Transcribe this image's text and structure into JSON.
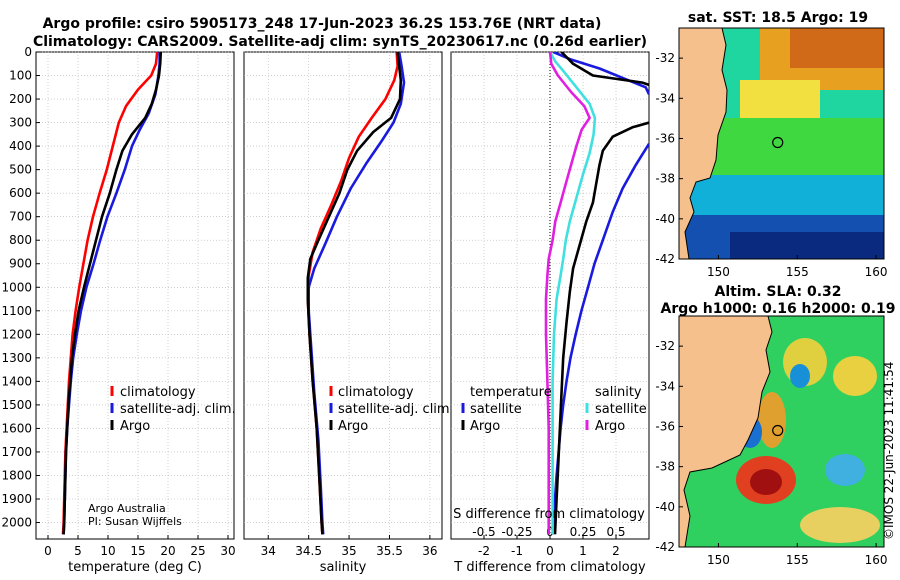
{
  "titles": {
    "line1": "Argo profile: csiro 5905173_248 17-Jun-2023 36.2S 153.76E (NRT data)",
    "line2": "Climatology: CARS2009. Satellite-adj clim: synTS_20230617.nc (0.26d earlier)"
  },
  "colors": {
    "climatology": "#ff0000",
    "satellite": "#1a1adf",
    "argo": "#000000",
    "sal_satellite": "#40e0e0",
    "sal_argo": "#e020e0",
    "land": "#f5c08c",
    "grid": "#b4b4b4"
  },
  "depth_ticks": [
    0,
    100,
    200,
    300,
    400,
    500,
    600,
    700,
    800,
    900,
    1000,
    1100,
    1200,
    1300,
    1400,
    1500,
    1600,
    1700,
    1800,
    1900,
    2000
  ],
  "chart_data": [
    {
      "type": "line",
      "name": "temperature",
      "xlabel": "temperature (deg C)",
      "ylabel": "depth",
      "xlim": [
        -2,
        31
      ],
      "ylim": [
        2070,
        0
      ],
      "xticks": [
        0,
        5,
        10,
        15,
        20,
        25,
        30
      ],
      "legend": {
        "position": "bottom-center",
        "entries": [
          "climatology",
          "satellite-adj. clim.",
          "Argo"
        ]
      },
      "annotation": [
        "Argo Australia",
        "PI: Susan Wijffels"
      ],
      "series": [
        {
          "name": "climatology",
          "color": "#ff0000",
          "points": [
            [
              18.2,
              0
            ],
            [
              18.0,
              50
            ],
            [
              17.2,
              100
            ],
            [
              15.0,
              160
            ],
            [
              13.0,
              230
            ],
            [
              11.8,
              300
            ],
            [
              10.8,
              400
            ],
            [
              9.8,
              500
            ],
            [
              8.6,
              600
            ],
            [
              7.5,
              700
            ],
            [
              6.6,
              800
            ],
            [
              5.9,
              900
            ],
            [
              5.2,
              1000
            ],
            [
              4.6,
              1100
            ],
            [
              4.1,
              1200
            ],
            [
              3.8,
              1300
            ],
            [
              3.5,
              1400
            ],
            [
              3.3,
              1500
            ],
            [
              3.1,
              1600
            ],
            [
              2.9,
              1700
            ],
            [
              2.8,
              1800
            ],
            [
              2.7,
              1900
            ],
            [
              2.6,
              2000
            ],
            [
              2.5,
              2050
            ]
          ]
        },
        {
          "name": "satellite-adj. clim.",
          "color": "#1a1adf",
          "points": [
            [
              18.6,
              0
            ],
            [
              18.6,
              50
            ],
            [
              18.4,
              100
            ],
            [
              17.9,
              180
            ],
            [
              16.8,
              260
            ],
            [
              15.3,
              330
            ],
            [
              14.0,
              400
            ],
            [
              12.8,
              500
            ],
            [
              11.4,
              600
            ],
            [
              9.9,
              700
            ],
            [
              8.7,
              800
            ],
            [
              7.6,
              900
            ],
            [
              6.4,
              1000
            ],
            [
              5.5,
              1100
            ],
            [
              4.8,
              1200
            ],
            [
              4.2,
              1300
            ],
            [
              3.8,
              1400
            ],
            [
              3.5,
              1500
            ],
            [
              3.2,
              1600
            ],
            [
              3.0,
              1700
            ],
            [
              2.9,
              1800
            ],
            [
              2.8,
              1900
            ],
            [
              2.7,
              2000
            ],
            [
              2.6,
              2050
            ]
          ]
        },
        {
          "name": "Argo",
          "color": "#000000",
          "points": [
            [
              18.8,
              0
            ],
            [
              18.7,
              50
            ],
            [
              18.5,
              100
            ],
            [
              18.0,
              160
            ],
            [
              17.3,
              220
            ],
            [
              16.2,
              280
            ],
            [
              14.0,
              350
            ],
            [
              12.4,
              420
            ],
            [
              11.4,
              500
            ],
            [
              10.3,
              600
            ],
            [
              9.0,
              700
            ],
            [
              8.0,
              800
            ],
            [
              7.0,
              900
            ],
            [
              6.0,
              1000
            ],
            [
              5.1,
              1100
            ],
            [
              4.5,
              1200
            ],
            [
              4.0,
              1300
            ],
            [
              3.7,
              1400
            ],
            [
              3.4,
              1500
            ],
            [
              3.2,
              1600
            ],
            [
              3.0,
              1700
            ],
            [
              2.9,
              1800
            ],
            [
              2.8,
              1900
            ],
            [
              2.7,
              2000
            ],
            [
              2.6,
              2050
            ]
          ]
        }
      ]
    },
    {
      "type": "line",
      "name": "salinity",
      "xlabel": "salinity",
      "ylabel": "depth",
      "xlim": [
        33.7,
        36.15
      ],
      "ylim": [
        2070,
        0
      ],
      "xticks": [
        34,
        34.5,
        35,
        35.5,
        36
      ],
      "legend": {
        "position": "bottom-center",
        "entries": [
          "climatology",
          "satellite-adj. clim.",
          "Argo"
        ]
      },
      "series": [
        {
          "name": "climatology",
          "color": "#ff0000",
          "points": [
            [
              35.59,
              0
            ],
            [
              35.6,
              60
            ],
            [
              35.56,
              120
            ],
            [
              35.45,
              200
            ],
            [
              35.28,
              280
            ],
            [
              35.12,
              360
            ],
            [
              35.0,
              450
            ],
            [
              34.9,
              550
            ],
            [
              34.78,
              650
            ],
            [
              34.65,
              750
            ],
            [
              34.55,
              850
            ],
            [
              34.5,
              950
            ],
            [
              34.49,
              1050
            ],
            [
              34.51,
              1200
            ],
            [
              34.55,
              1400
            ],
            [
              34.6,
              1600
            ],
            [
              34.63,
              1800
            ],
            [
              34.66,
              2000
            ],
            [
              34.67,
              2050
            ]
          ]
        },
        {
          "name": "satellite-adj. clim.",
          "color": "#1a1adf",
          "points": [
            [
              35.62,
              0
            ],
            [
              35.65,
              60
            ],
            [
              35.68,
              130
            ],
            [
              35.64,
              220
            ],
            [
              35.55,
              300
            ],
            [
              35.4,
              380
            ],
            [
              35.22,
              470
            ],
            [
              35.02,
              580
            ],
            [
              34.85,
              700
            ],
            [
              34.7,
              820
            ],
            [
              34.57,
              920
            ],
            [
              34.5,
              1000
            ],
            [
              34.5,
              1100
            ],
            [
              34.53,
              1250
            ],
            [
              34.57,
              1450
            ],
            [
              34.62,
              1650
            ],
            [
              34.65,
              1850
            ],
            [
              34.67,
              2000
            ],
            [
              34.68,
              2050
            ]
          ]
        },
        {
          "name": "Argo",
          "color": "#000000",
          "points": [
            [
              35.6,
              0
            ],
            [
              35.62,
              60
            ],
            [
              35.64,
              120
            ],
            [
              35.63,
              200
            ],
            [
              35.52,
              280
            ],
            [
              35.3,
              340
            ],
            [
              35.1,
              420
            ],
            [
              34.98,
              500
            ],
            [
              34.88,
              600
            ],
            [
              34.75,
              700
            ],
            [
              34.62,
              800
            ],
            [
              34.52,
              880
            ],
            [
              34.49,
              960
            ],
            [
              34.49,
              1050
            ],
            [
              34.51,
              1200
            ],
            [
              34.55,
              1400
            ],
            [
              34.6,
              1600
            ],
            [
              34.63,
              1800
            ],
            [
              34.66,
              2000
            ],
            [
              34.67,
              2050
            ]
          ]
        }
      ]
    },
    {
      "type": "line",
      "name": "differences",
      "xlabel": "T difference from climatology",
      "x2label": "S difference from climatology",
      "ylabel": "depth",
      "xlim": [
        -3,
        3
      ],
      "ylim": [
        2070,
        0
      ],
      "xticks": [
        -2,
        -1,
        0,
        1,
        2
      ],
      "x2lim": [
        -0.75,
        0.75
      ],
      "x2ticks": [
        -0.5,
        -0.25,
        0,
        0.25,
        0.5
      ],
      "legend": {
        "position": "bottom",
        "groups": [
          {
            "title": "temperature",
            "entries": [
              "satellite",
              "Argo"
            ]
          },
          {
            "title": "salinity",
            "entries": [
              "satellite",
              "Argo"
            ]
          }
        ]
      },
      "series": [
        {
          "name": "temperature satellite",
          "color": "#1a1adf",
          "points": [
            [
              0.1,
              0
            ],
            [
              0.6,
              30
            ],
            [
              1.5,
              70
            ],
            [
              2.9,
              150
            ],
            [
              3.0,
              180
            ]
          ],
          "points_b": [
            [
              3.0,
              390
            ],
            [
              2.6,
              480
            ],
            [
              2.2,
              580
            ],
            [
              1.9,
              680
            ],
            [
              1.6,
              800
            ],
            [
              1.35,
              900
            ],
            [
              1.15,
              1000
            ],
            [
              0.95,
              1100
            ],
            [
              0.78,
              1200
            ],
            [
              0.62,
              1300
            ],
            [
              0.5,
              1400
            ],
            [
              0.4,
              1500
            ],
            [
              0.32,
              1600
            ],
            [
              0.26,
              1700
            ],
            [
              0.2,
              1800
            ],
            [
              0.15,
              1900
            ],
            [
              0.1,
              2000
            ],
            [
              0.08,
              2050
            ]
          ]
        },
        {
          "name": "temperature Argo",
          "color": "#000000",
          "points": [
            [
              0.35,
              0
            ],
            [
              0.7,
              50
            ],
            [
              1.3,
              100
            ],
            [
              2.8,
              130
            ],
            [
              3.0,
              140
            ]
          ],
          "points_b": [
            [
              3.0,
              300
            ],
            [
              2.5,
              320
            ],
            [
              1.9,
              360
            ],
            [
              1.6,
              420
            ],
            [
              1.5,
              480
            ],
            [
              1.4,
              560
            ],
            [
              1.3,
              640
            ],
            [
              1.1,
              720
            ],
            [
              0.9,
              820
            ],
            [
              0.7,
              920
            ],
            [
              0.6,
              1020
            ],
            [
              0.5,
              1150
            ],
            [
              0.4,
              1300
            ],
            [
              0.35,
              1450
            ],
            [
              0.3,
              1600
            ],
            [
              0.25,
              1750
            ],
            [
              0.2,
              1900
            ],
            [
              0.15,
              2050
            ]
          ]
        },
        {
          "name": "salinity satellite",
          "color": "#40e0e0",
          "points": [
            [
              0.0,
              0
            ],
            [
              0.04,
              40
            ],
            [
              0.1,
              80
            ],
            [
              0.2,
              150
            ],
            [
              0.3,
              220
            ],
            [
              0.34,
              280
            ],
            [
              0.33,
              350
            ],
            [
              0.3,
              430
            ],
            [
              0.25,
              520
            ],
            [
              0.2,
              620
            ],
            [
              0.15,
              720
            ],
            [
              0.12,
              800
            ],
            [
              0.1,
              880
            ],
            [
              0.08,
              950
            ],
            [
              0.05,
              1050
            ],
            [
              0.03,
              1200
            ],
            [
              0.02,
              1400
            ],
            [
              0.02,
              1600
            ],
            [
              0.02,
              1800
            ],
            [
              0.02,
              2000
            ],
            [
              0.02,
              2050
            ]
          ]
        },
        {
          "name": "salinity Argo",
          "color": "#e020e0",
          "points": [
            [
              0.0,
              0
            ],
            [
              0.01,
              50
            ],
            [
              0.06,
              100
            ],
            [
              0.16,
              170
            ],
            [
              0.26,
              230
            ],
            [
              0.3,
              280
            ],
            [
              0.24,
              330
            ],
            [
              0.2,
              400
            ],
            [
              0.16,
              480
            ],
            [
              0.12,
              560
            ],
            [
              0.08,
              640
            ],
            [
              0.04,
              720
            ],
            [
              0.02,
              800
            ],
            [
              -0.01,
              880
            ],
            [
              -0.02,
              950
            ],
            [
              -0.03,
              1050
            ],
            [
              -0.03,
              1200
            ],
            [
              -0.02,
              1400
            ],
            [
              -0.01,
              1600
            ],
            [
              -0.01,
              1800
            ],
            [
              -0.01,
              2000
            ],
            [
              -0.01,
              2050
            ]
          ]
        }
      ]
    },
    {
      "type": "heatmap",
      "name": "sst-map",
      "title": "sat. SST: 18.5 Argo: 19",
      "xlim": [
        147.5,
        160.5
      ],
      "ylim": [
        -42,
        -30.5
      ],
      "xticks": [
        150,
        155,
        160
      ],
      "yticks": [
        -32,
        -34,
        -36,
        -38,
        -40,
        -42
      ],
      "marker": {
        "lon": 153.76,
        "lat": -36.2
      }
    },
    {
      "type": "heatmap",
      "name": "sla-map",
      "title": "Altim. SLA: 0.32",
      "subtitle": "Argo h1000: 0.16 h2000: 0.19",
      "xlim": [
        147.5,
        160.5
      ],
      "ylim": [
        -42,
        -30.5
      ],
      "xticks": [
        150,
        155,
        160
      ],
      "yticks": [
        -32,
        -34,
        -36,
        -38,
        -40,
        -42
      ],
      "marker": {
        "lon": 153.76,
        "lat": -36.2
      }
    }
  ],
  "watermark": "©IMOS 22-Jun-2023 11:41:54"
}
